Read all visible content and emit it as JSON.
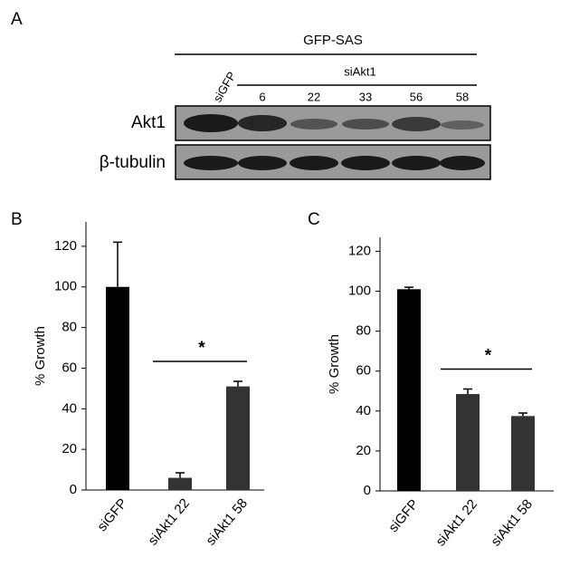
{
  "blot": {
    "label": "A",
    "group": "GFP-SAS",
    "subgroup": "siAkt1",
    "lanes": [
      "siGFP",
      "6",
      "22",
      "33",
      "56",
      "58"
    ],
    "rows": [
      "Akt1",
      "β-tubulin"
    ]
  },
  "chart_data": [
    {
      "type": "bar",
      "label": "B",
      "ylabel": "% Growth",
      "categories": [
        "siGFP",
        "siAkt1 22",
        "siAkt1 58"
      ],
      "values": [
        100,
        6,
        51
      ],
      "errors": [
        22,
        2.5,
        2.5
      ],
      "colors": [
        "#000000",
        "#333333",
        "#333333"
      ],
      "ylim": [
        0,
        132
      ],
      "yticks": [
        0,
        20,
        40,
        60,
        80,
        100,
        120
      ],
      "annotation": "*"
    },
    {
      "type": "bar",
      "label": "C",
      "ylabel": "% Growth",
      "categories": [
        "siGFP",
        "siAkt1 22",
        "siAkt1 58"
      ],
      "values": [
        101,
        48.5,
        37.5
      ],
      "errors": [
        1,
        2.5,
        1.5
      ],
      "colors": [
        "#000000",
        "#333333",
        "#333333"
      ],
      "ylim": [
        0,
        127
      ],
      "yticks": [
        0,
        20,
        40,
        60,
        80,
        100,
        120
      ],
      "annotation": "*"
    }
  ]
}
